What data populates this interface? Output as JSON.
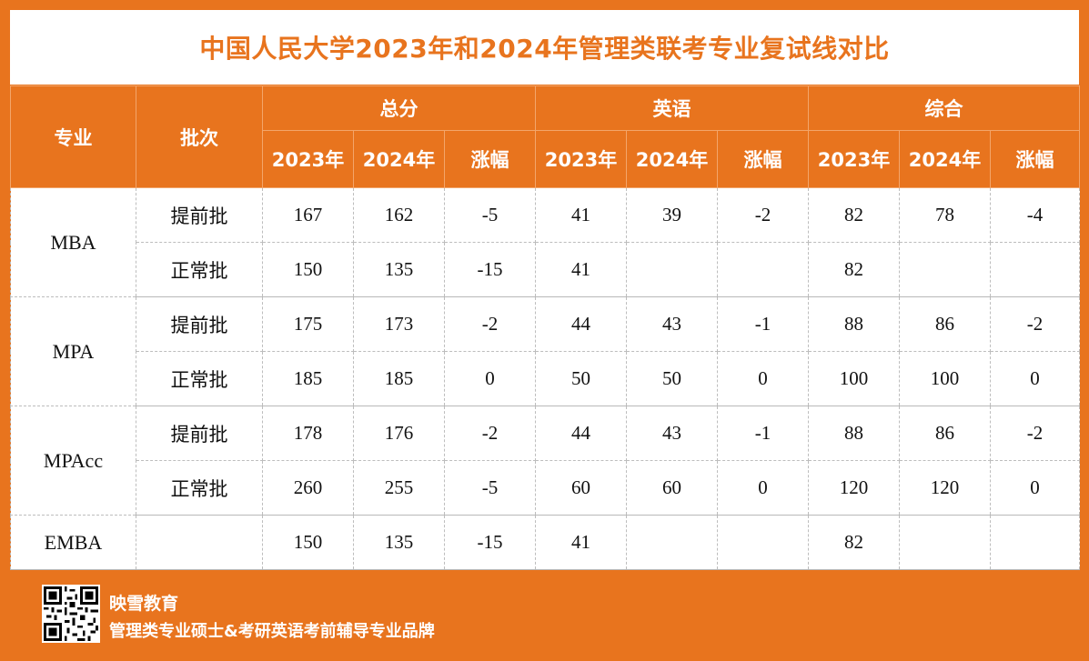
{
  "title": "中国人民大学2023年和2024年管理类联考专业复试线对比",
  "header": {
    "major": "专业",
    "batch": "批次",
    "groups": [
      "总分",
      "英语",
      "综合"
    ],
    "sub": [
      "2023年",
      "2024年",
      "涨幅"
    ]
  },
  "rows": [
    {
      "major": "MBA",
      "batch": "提前批",
      "total": [
        "167",
        "162",
        "-5"
      ],
      "english": [
        "41",
        "39",
        "-2"
      ],
      "comprehensive": [
        "82",
        "78",
        "-4"
      ]
    },
    {
      "major": "",
      "batch": "正常批",
      "total": [
        "150",
        "135",
        "-15"
      ],
      "english": [
        "41",
        "",
        ""
      ],
      "comprehensive": [
        "82",
        "",
        ""
      ]
    },
    {
      "major": "MPA",
      "batch": "提前批",
      "total": [
        "175",
        "173",
        "-2"
      ],
      "english": [
        "44",
        "43",
        "-1"
      ],
      "comprehensive": [
        "88",
        "86",
        "-2"
      ]
    },
    {
      "major": "",
      "batch": "正常批",
      "total": [
        "185",
        "185",
        "0"
      ],
      "english": [
        "50",
        "50",
        "0"
      ],
      "comprehensive": [
        "100",
        "100",
        "0"
      ]
    },
    {
      "major": "MPAcc",
      "batch": "提前批",
      "total": [
        "178",
        "176",
        "-2"
      ],
      "english": [
        "44",
        "43",
        "-1"
      ],
      "comprehensive": [
        "88",
        "86",
        "-2"
      ]
    },
    {
      "major": "",
      "batch": "正常批",
      "total": [
        "260",
        "255",
        "-5"
      ],
      "english": [
        "60",
        "60",
        "0"
      ],
      "comprehensive": [
        "120",
        "120",
        "0"
      ]
    },
    {
      "major": "EMBA",
      "batch": "",
      "total": [
        "150",
        "135",
        "-15"
      ],
      "english": [
        "41",
        "",
        ""
      ],
      "comprehensive": [
        "82",
        "",
        ""
      ]
    }
  ],
  "footer": {
    "brand": "映雪教育",
    "slogan": "管理类专业硕士&考研英语考前辅导专业品牌",
    "qr_icon": "qr-code-icon"
  },
  "colors": {
    "accent": "#e8741e",
    "total": "#111111",
    "change": "#e0141e",
    "english": "#1f6fc0",
    "comprehensive": "#7a3fa6"
  }
}
